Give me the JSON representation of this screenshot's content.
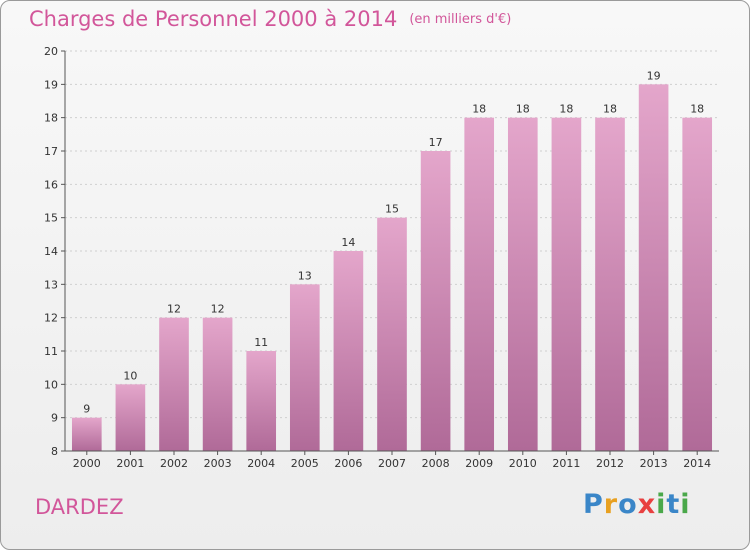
{
  "header": {
    "title": "Charges de Personnel 2000 à 2014",
    "subtitle": "(en milliers d'€)"
  },
  "commune": "DARDEZ",
  "logo": {
    "letters": [
      "P",
      "r",
      "o",
      "x",
      "i",
      "t",
      "i"
    ],
    "colors": [
      "#3a86c8",
      "#e8a020",
      "#3a86c8",
      "#e84040",
      "#4aa84a",
      "#3a86c8",
      "#4aa84a"
    ]
  },
  "chart_data": {
    "type": "bar",
    "categories": [
      "2000",
      "2001",
      "2002",
      "2003",
      "2004",
      "2005",
      "2006",
      "2007",
      "2008",
      "2009",
      "2010",
      "2011",
      "2012",
      "2013",
      "2014"
    ],
    "values": [
      9,
      10,
      12,
      12,
      11,
      13,
      14,
      15,
      17,
      18,
      18,
      18,
      18,
      19,
      18
    ],
    "data_labels": [
      "9",
      "10",
      "12",
      "12",
      "11",
      "13",
      "14",
      "15",
      "17",
      "18",
      "18",
      "18",
      "18",
      "19",
      "18"
    ],
    "yticks": [
      "8",
      "9",
      "10",
      "11",
      "12",
      "13",
      "14",
      "15",
      "16",
      "17",
      "18",
      "19",
      "20"
    ],
    "ylim": [
      8,
      20
    ],
    "grid": true,
    "bar_color_top": "#e4a6cb",
    "bar_color_bottom": "#b06a98",
    "text_color": "#333333"
  }
}
